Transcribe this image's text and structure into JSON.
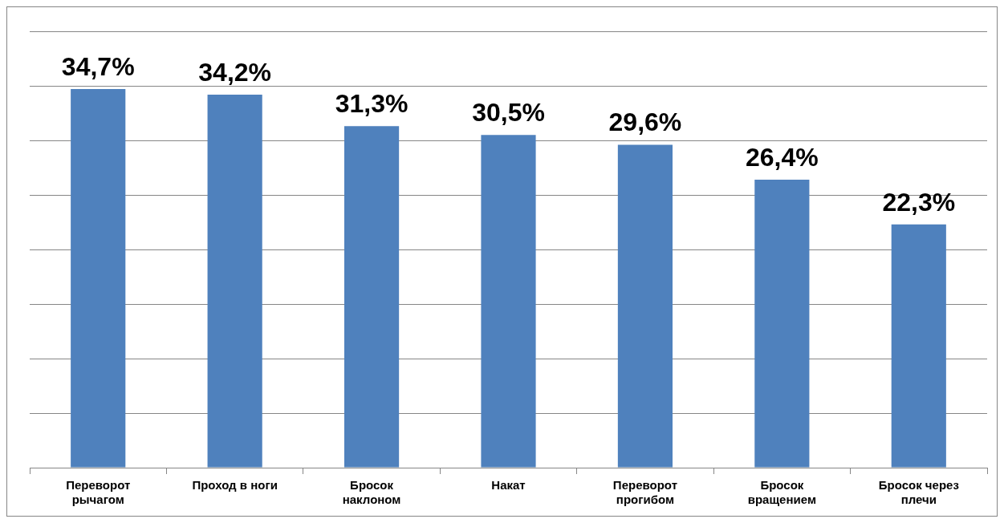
{
  "chart_data": {
    "type": "bar",
    "categories": [
      "Переворот рычагом",
      "Проход в ноги",
      "Бросок наклоном",
      "Накат",
      "Переворот прогибом",
      "Бросок вращением",
      "Бросок через плечи"
    ],
    "values": [
      34.7,
      34.2,
      31.3,
      30.5,
      29.6,
      26.4,
      22.3
    ],
    "value_labels": [
      "34,7%",
      "34,2%",
      "31,3%",
      "30,5%",
      "29,6%",
      "26,4%",
      "22,3%"
    ],
    "color": "#4f81bd",
    "ylim": [
      0,
      40
    ],
    "yticks": [
      {
        "value": 0,
        "label": null
      },
      {
        "value": 5,
        "label": null
      },
      {
        "value": 10,
        "label": null
      },
      {
        "value": 15,
        "label": null
      },
      {
        "value": 20,
        "label": null
      },
      {
        "value": 25,
        "label": null
      },
      {
        "value": 30,
        "label": null
      },
      {
        "value": 35,
        "label": null
      },
      {
        "value": 40,
        "label": null
      }
    ],
    "grid": "y",
    "legend": false,
    "tick_labels": "x"
  }
}
